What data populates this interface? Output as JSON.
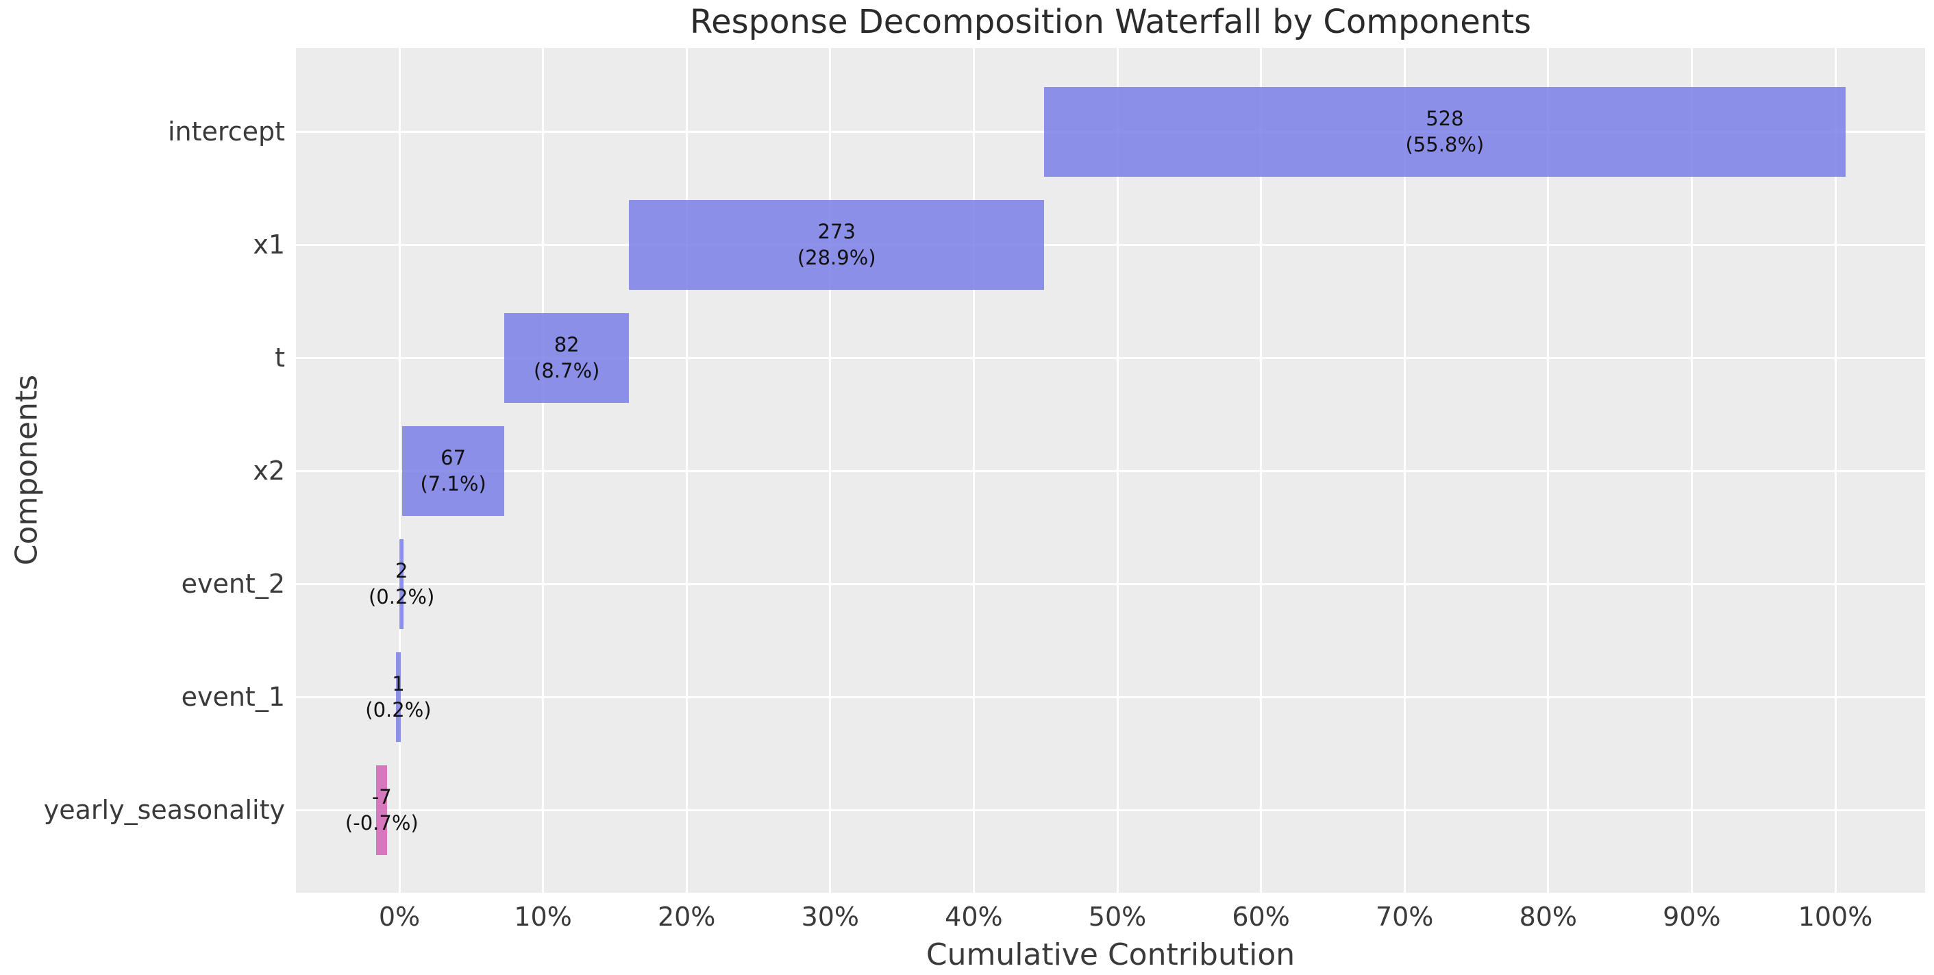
{
  "chart_data": {
    "type": "bar",
    "variant": "horizontal-waterfall",
    "title": "Response Decomposition Waterfall by Components",
    "xlabel": "Cumulative Contribution",
    "ylabel": "Components",
    "grid": true,
    "legend": null,
    "xlim": [
      -7.2,
      106.25
    ],
    "categories": [
      "intercept",
      "x1",
      "t",
      "x2",
      "event_2",
      "event_1",
      "yearly_seasonality"
    ],
    "values": [
      528,
      273,
      82,
      67,
      2,
      1,
      -7
    ],
    "pct_of_total": [
      "55.8%",
      "28.9%",
      "8.7%",
      "7.1%",
      "0.2%",
      "0.2%",
      "-0.7%"
    ],
    "bar_labels": [
      [
        "528",
        "(55.8%)"
      ],
      [
        "273",
        "(28.9%)"
      ],
      [
        "82",
        "(8.7%)"
      ],
      [
        "67",
        "(7.1%)"
      ],
      [
        "2",
        "(0.2%)"
      ],
      [
        "1",
        "(0.2%)"
      ],
      [
        "-7",
        "(-0.7%)"
      ]
    ],
    "segments": [
      {
        "category": "intercept",
        "start": 44.9,
        "end": 100.7
      },
      {
        "category": "x1",
        "start": 16.0,
        "end": 44.9
      },
      {
        "category": "t",
        "start": 7.3,
        "end": 16.0
      },
      {
        "category": "x2",
        "start": 0.2,
        "end": 7.3
      },
      {
        "category": "event_2",
        "start": 0.0,
        "end": 0.3
      },
      {
        "category": "event_1",
        "start": -0.25,
        "end": 0.1
      },
      {
        "category": "yearly_seasonality",
        "start": -1.6,
        "end": -0.85
      }
    ],
    "xticks": [
      {
        "value": 0,
        "label": "0%"
      },
      {
        "value": 10,
        "label": "10%"
      },
      {
        "value": 20,
        "label": "20%"
      },
      {
        "value": 30,
        "label": "30%"
      },
      {
        "value": 40,
        "label": "40%"
      },
      {
        "value": 50,
        "label": "50%"
      },
      {
        "value": 60,
        "label": "60%"
      },
      {
        "value": 70,
        "label": "70%"
      },
      {
        "value": 80,
        "label": "80%"
      },
      {
        "value": 90,
        "label": "90%"
      },
      {
        "value": 100,
        "label": "100%"
      }
    ],
    "colors": {
      "positive_bar": "#7a7fe7",
      "negative_bar": "#d264b6",
      "positive_bar_rendered": "#8b8fe8",
      "negative_bar_rendered": "#d678be",
      "plot_background": "#ececec",
      "gridline": "#ffffff",
      "text": "#3a3a3a",
      "bar_label_text": "#111111"
    }
  }
}
